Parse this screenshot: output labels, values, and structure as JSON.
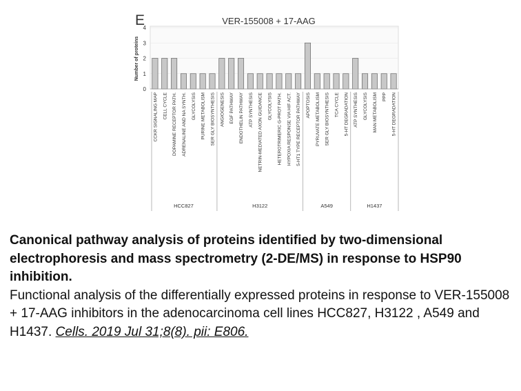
{
  "chart_data": {
    "type": "bar",
    "panel": "E",
    "title": "VER-155008 + 17-AAG",
    "y_label": "Number of proteins",
    "ylim": [
      0,
      4
    ],
    "yticks": [
      0,
      1,
      2,
      3,
      4
    ],
    "color": "#c8c8c8",
    "groups": [
      {
        "name": "HCC827",
        "categories": [
          "CCKR SIGNALING MAP",
          "CELL CYCLE",
          "DOPAMINE RECEPTOR PATH.",
          "ADRENALINE AND NA SYNTH.",
          "GLYCOLYSIS",
          "PURINE METABOLISM",
          "SER GLY BIOSYNTHESIS"
        ],
        "values": [
          2,
          2,
          2,
          1,
          1,
          1,
          1
        ]
      },
      {
        "name": "H3122",
        "categories": [
          "ANGIOGENESIS",
          "EGF PATHWAY",
          "ENDOTHELIN PATHWAY",
          "ATP SYNTHESIS",
          "NETRIN-MEDIATED AXON GUIDANCE",
          "GLYCOLYSIS",
          "HETEROTRIMERIC G-PROT PATH.",
          "HYPOXIA RESPONSE VIA HIF ACT.",
          "5-HT1 TYPE RECEPTOR PATHWAY"
        ],
        "values": [
          2,
          2,
          2,
          1,
          1,
          1,
          1,
          1,
          1
        ]
      },
      {
        "name": "A549",
        "categories": [
          "APOPTOSIS",
          "PYRUVATE METABOLISM",
          "SER GLY BIOSYNTHESIS",
          "TCA CYCLE",
          "5-HT DEGRADATION"
        ],
        "values": [
          3,
          1,
          1,
          1,
          1
        ]
      },
      {
        "name": "H1437",
        "categories": [
          "ATP SYNTHESIS",
          "GLYCOLYSIS",
          "MAN METABOLISM",
          "PPP",
          "5-HT DEGRADATION"
        ],
        "values": [
          2,
          1,
          1,
          1,
          1
        ]
      }
    ]
  },
  "caption": {
    "title": "Canonical pathway analysis of proteins identified by two-dimensional electrophoresis and mass spectrometry (2-DE/MS) in response to HSP90 inhibition.",
    "text": "Functional analysis of the differentially expressed proteins in response to VER-155008 + 17-AAG inhibitors in the adenocarcinoma cell lines HCC827, H3122 , A549 and H1437.",
    "citation": "Cells. 2019 Jul 31;8(8). pii: E806."
  }
}
